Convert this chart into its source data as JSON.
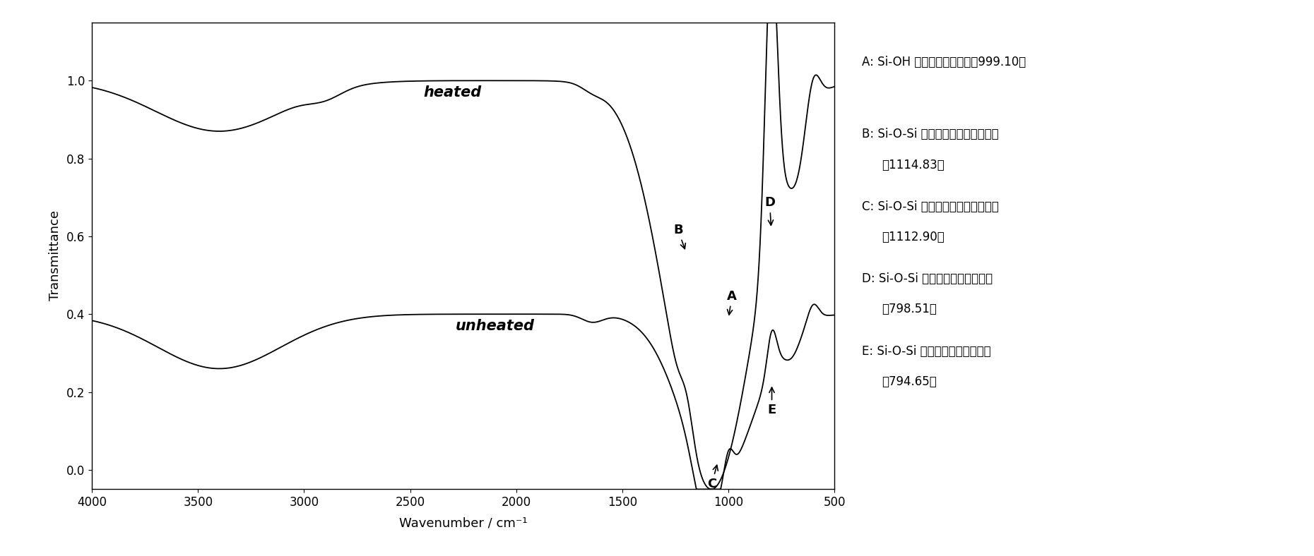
{
  "title": "",
  "xlabel": "Wavenumber / cm⁻¹",
  "ylabel": "Transmittance",
  "xlim": [
    4000,
    500
  ],
  "ylim": [
    -0.05,
    1.15
  ],
  "yticks": [
    0.0,
    0.2,
    0.4,
    0.6,
    0.8,
    1.0
  ],
  "xticks": [
    4000,
    3500,
    3000,
    2500,
    2000,
    1500,
    1000,
    500
  ],
  "heated_label": "heated",
  "unheated_label": "unheated",
  "legend_texts_line1": [
    "A: Si-OH 的弯曲振动吸收峰（999.10）",
    "B: Si-O-Si 的非对称伸缩振动吸收峰",
    "C: Si-O-Si 的非对称伸缩振动吸收峰",
    "D: Si-O-Si 的对称伸缩振动吸收峰",
    "E: Si-O-Si 的对称伸缩振动吸收峰"
  ],
  "legend_texts_line2": [
    "",
    "（1114.83）",
    "（1112.90）",
    "（798.51）",
    "（794.65）"
  ],
  "line_color": "#000000",
  "background_color": "#ffffff"
}
